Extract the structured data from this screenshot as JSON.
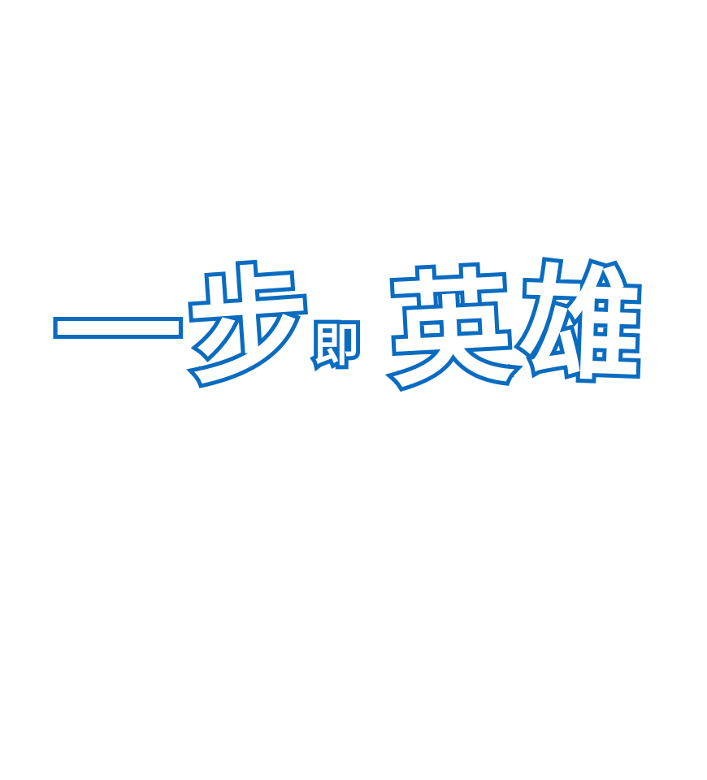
{
  "logo": {
    "stroke_color": "#0a6cc0",
    "fill_color": "#ffffff",
    "chars": [
      "一",
      "步",
      "即",
      "英",
      "雄"
    ]
  }
}
